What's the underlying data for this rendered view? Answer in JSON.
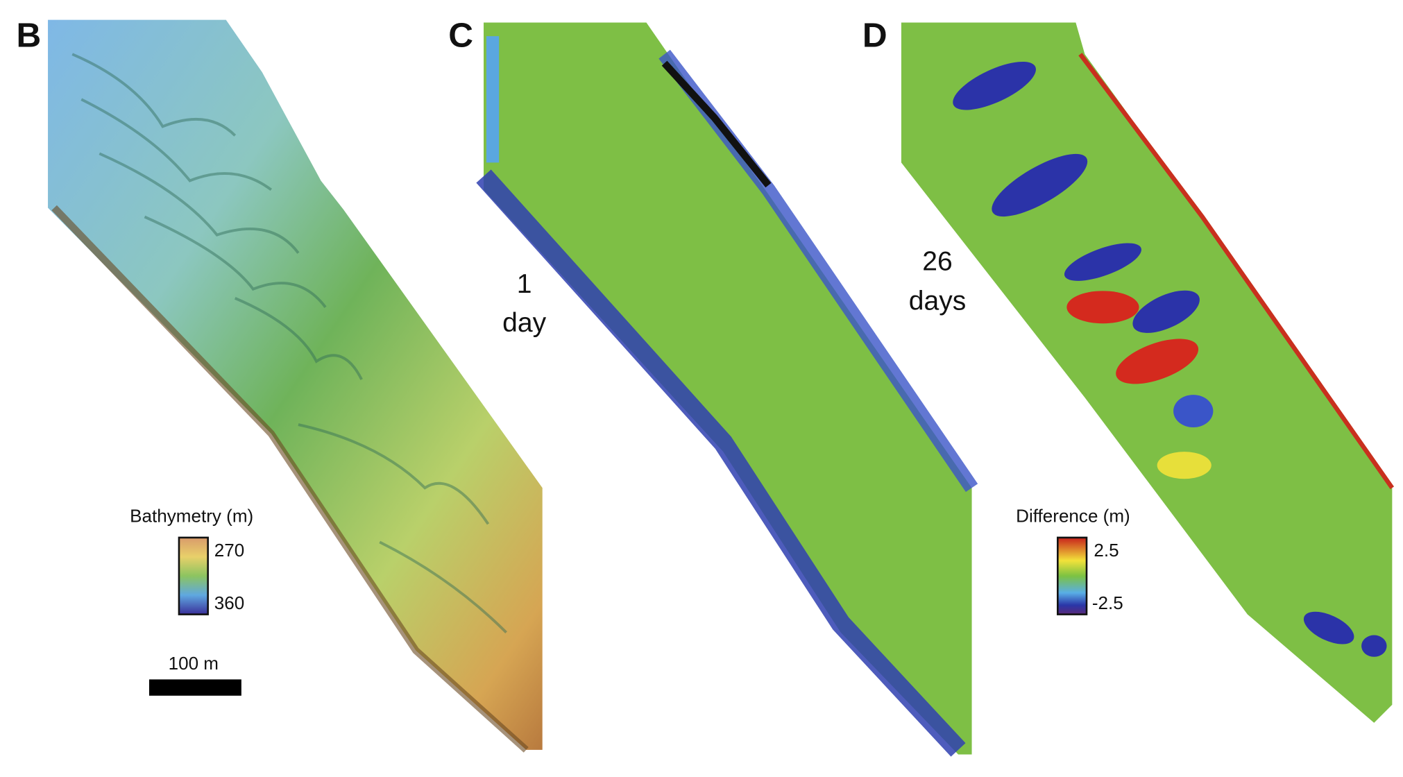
{
  "panels": [
    {
      "label": "B",
      "legend": {
        "title": "Bathymetry (m)",
        "ticks": [
          "270",
          "360"
        ]
      },
      "scale_bar": "100 m"
    },
    {
      "label": "C",
      "annotation": [
        "1",
        "day"
      ]
    },
    {
      "label": "D",
      "annotation": [
        "26",
        "days"
      ],
      "legend": {
        "title": "Difference (m)",
        "ticks": [
          "2.5",
          "-2.5"
        ]
      }
    }
  ]
}
